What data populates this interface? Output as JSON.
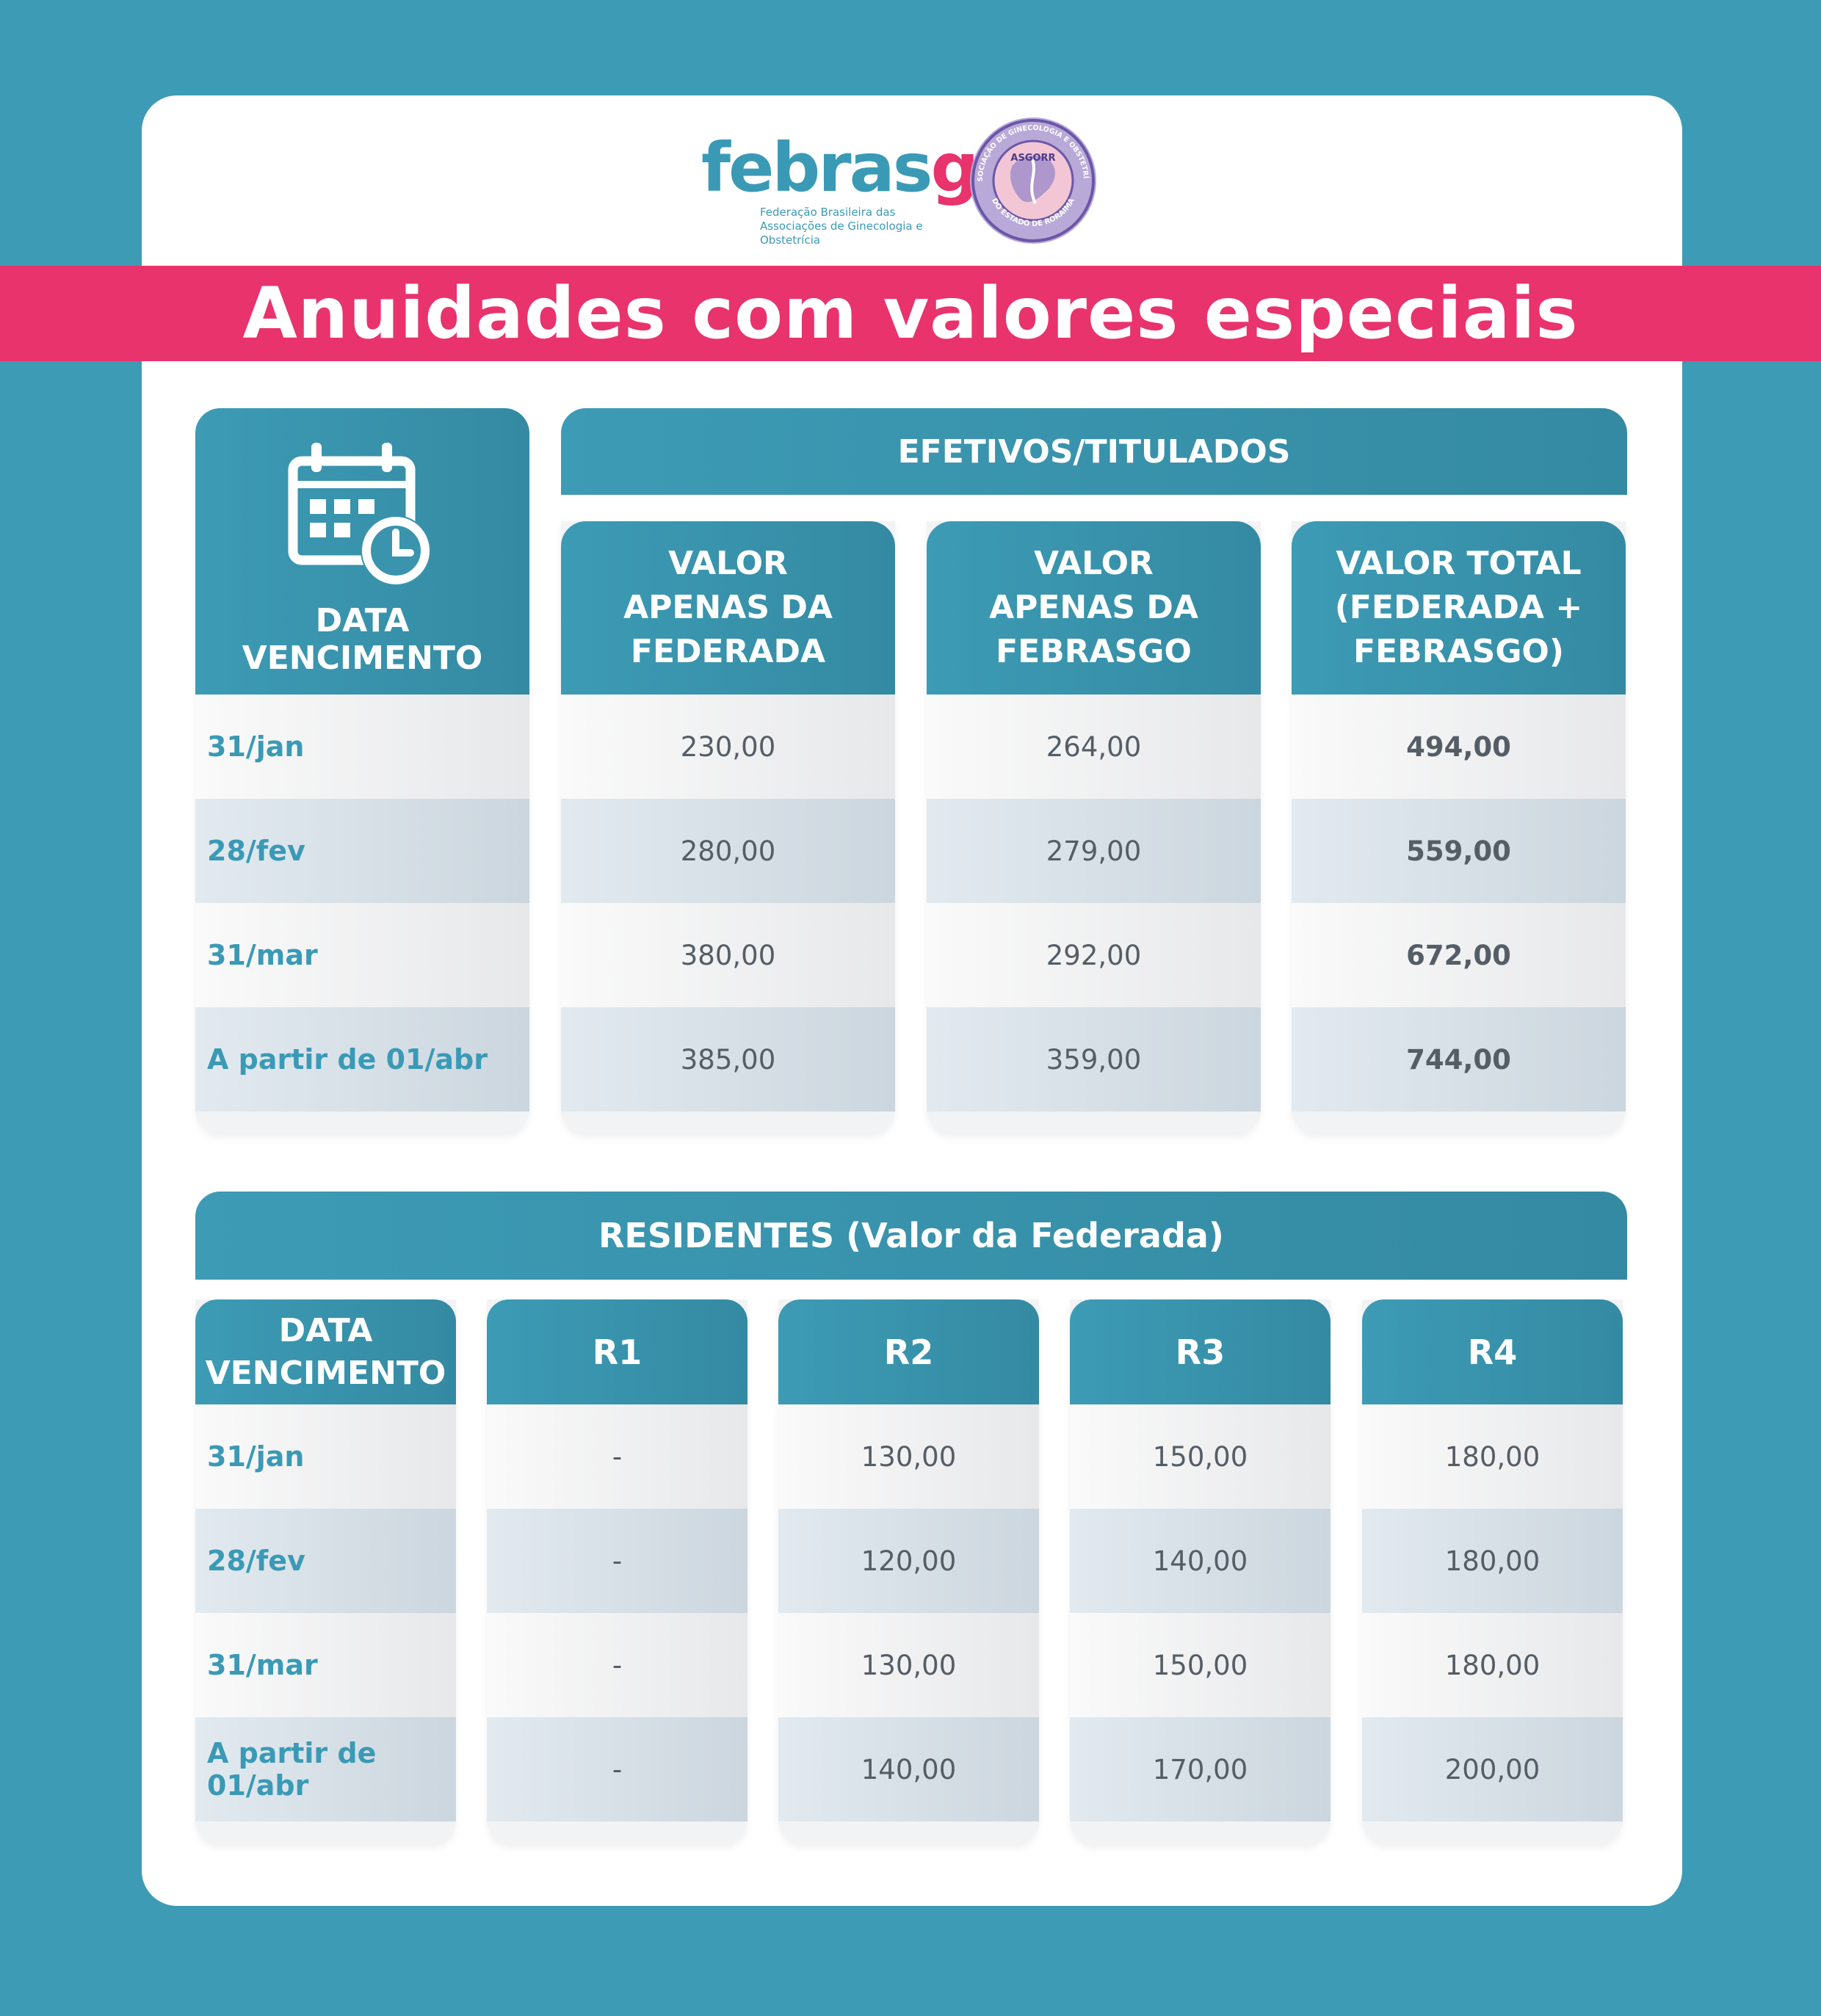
{
  "logo": {
    "brand_main": "febras",
    "brand_go": "go",
    "brand_sub_line1": "Federação Brasileira das",
    "brand_sub_line2": "Associações de Ginecologia e Obstetrícia",
    "seal_top_text": "ASSOCIAÇÃO DE GINECOLOGIA E OBSTETRÍCIA",
    "seal_center_text": "ASGORR",
    "seal_bottom_text": "DO ESTADO DE RORAIMA"
  },
  "title": "Anuidades com valores especiais",
  "efetivos": {
    "section_title": "EFETIVOS/TITULADOS",
    "date_header": "DATA VENCIMENTO",
    "icon": "calendar-clock-icon",
    "columns": [
      [
        "VALOR",
        "APENAS DA",
        "FEDERADA"
      ],
      [
        "VALOR",
        "APENAS DA",
        "FEBRASGO"
      ],
      [
        "VALOR TOTAL",
        "(FEDERADA +",
        "FEBRASGO)"
      ]
    ],
    "rows": [
      {
        "date": "31/jan",
        "federada": "230,00",
        "febrasgo": "264,00",
        "total": "494,00"
      },
      {
        "date": "28/fev",
        "federada": "280,00",
        "febrasgo": "279,00",
        "total": "559,00"
      },
      {
        "date": "31/mar",
        "federada": "380,00",
        "febrasgo": "292,00",
        "total": "672,00"
      },
      {
        "date": "A partir de 01/abr",
        "federada": "385,00",
        "febrasgo": "359,00",
        "total": "744,00"
      }
    ]
  },
  "residentes": {
    "section_title": "RESIDENTES (Valor da Federada)",
    "date_header_line1": "DATA",
    "date_header_line2": "VENCIMENTO",
    "columns": [
      "R1",
      "R2",
      "R3",
      "R4"
    ],
    "rows": [
      {
        "date": "31/jan",
        "values": [
          "-",
          "130,00",
          "150,00",
          "180,00"
        ]
      },
      {
        "date": "28/fev",
        "values": [
          "-",
          "120,00",
          "140,00",
          "180,00"
        ]
      },
      {
        "date": "31/mar",
        "values": [
          "-",
          "130,00",
          "150,00",
          "180,00"
        ]
      },
      {
        "date": "A partir de 01/abr",
        "values": [
          "-",
          "140,00",
          "170,00",
          "200,00"
        ]
      }
    ]
  },
  "colors": {
    "background": "#3d9bb5",
    "accent_pink": "#e8336d",
    "header_teal": "#3d9bb5",
    "date_text": "#3a9ab6"
  }
}
